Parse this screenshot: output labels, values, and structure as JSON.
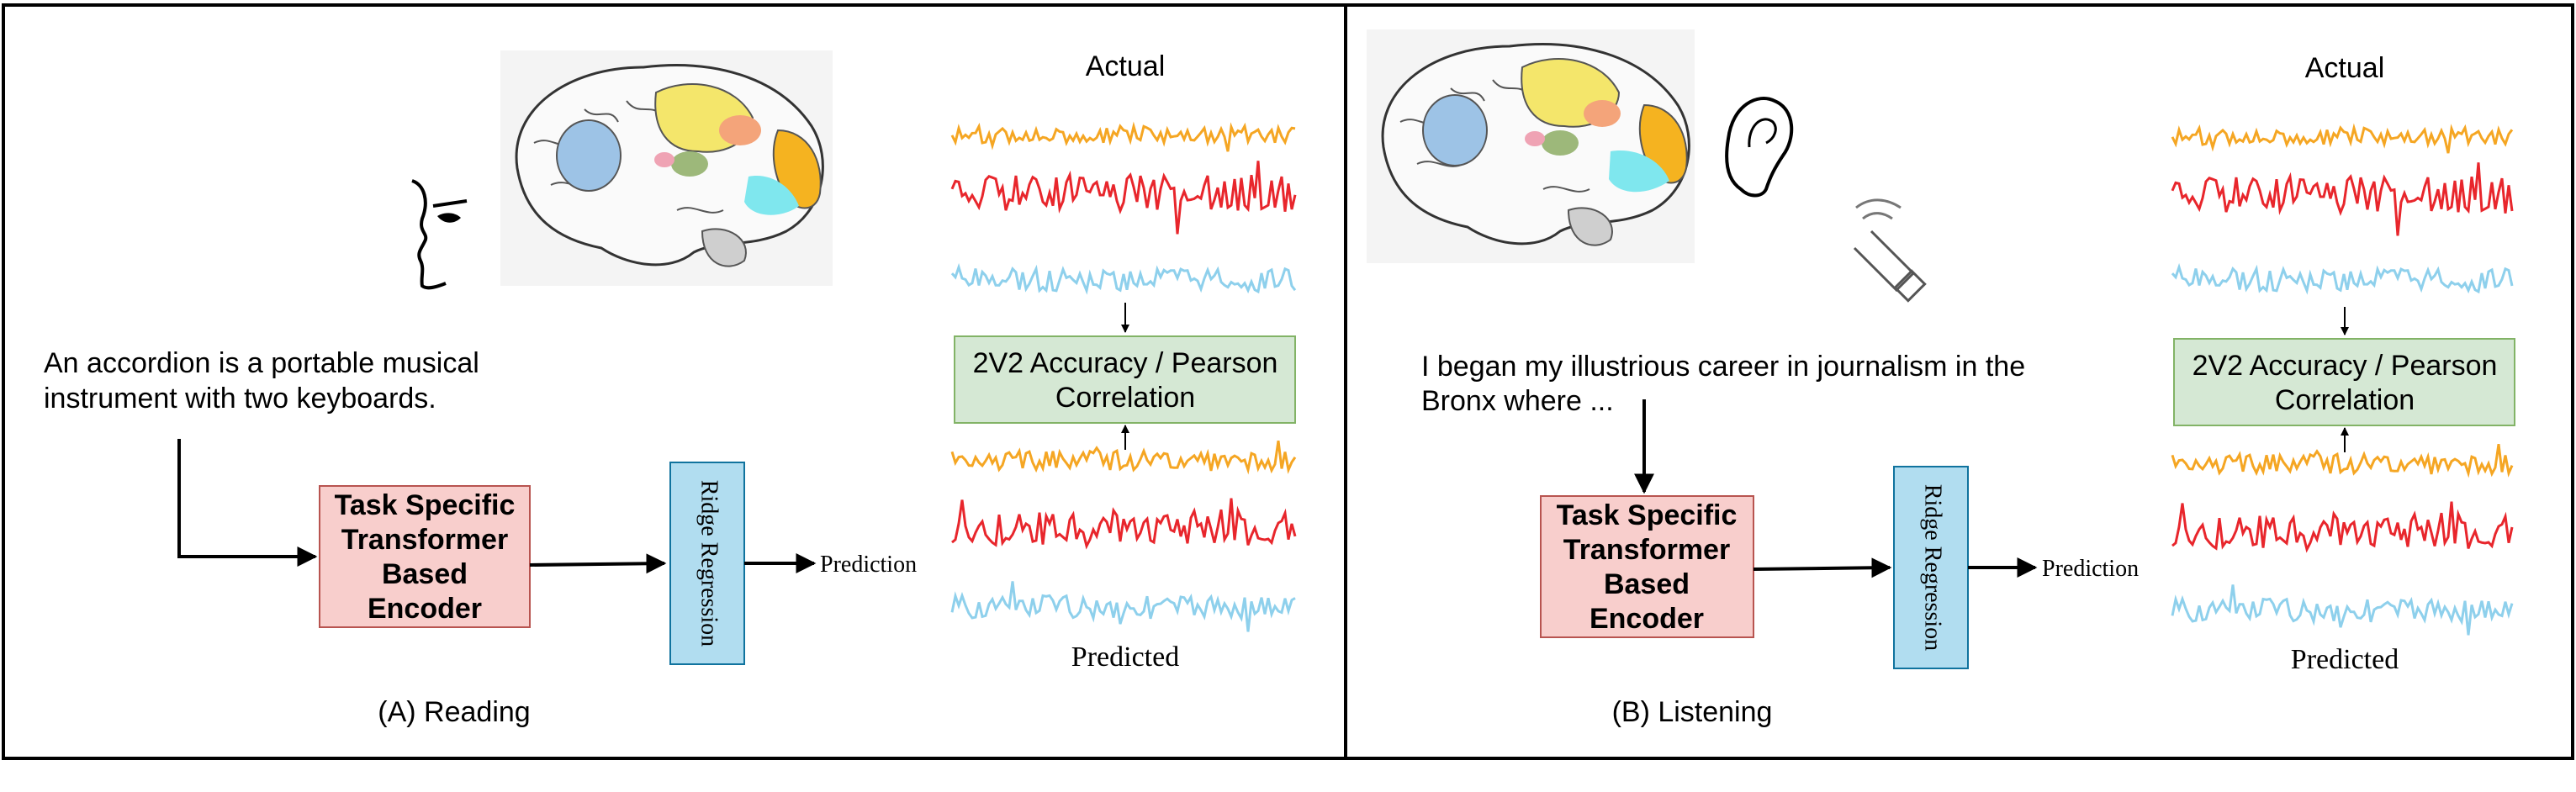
{
  "panels": [
    {
      "caption": "(A) Reading",
      "stimulus_line1": "An accordion is a portable musical",
      "stimulus_line2": "instrument with two keyboards.",
      "encoder_lines": [
        "Task Specific",
        "Transformer",
        "Based",
        "Encoder"
      ],
      "regression_label": "Ridge Regression",
      "prediction_label": "Prediction",
      "actual_label": "Actual",
      "predicted_label": "Predicted",
      "metric_line1": "2V2 Accuracy / Pearson",
      "metric_line2": "Correlation",
      "sensory_icon": "eye-face-icon"
    },
    {
      "caption": "(B) Listening",
      "stimulus_line1": "I began my illustrious career in journalism in the",
      "stimulus_line2": "Bronx where ...",
      "encoder_lines": [
        "Task Specific",
        "Transformer",
        "Based",
        "Encoder"
      ],
      "regression_label": "Ridge Regression",
      "prediction_label": "Prediction",
      "actual_label": "Actual",
      "predicted_label": "Predicted",
      "metric_line1": "2V2 Accuracy / Pearson",
      "metric_line2": "Correlation",
      "sensory_icon": "ear-icon"
    }
  ],
  "colors": {
    "signal_orange": "#F5A623",
    "signal_red": "#E8262C",
    "signal_blue": "#8ED0EC",
    "encoder_fill": "#F8CECC",
    "encoder_stroke": "#B85450",
    "regression_fill": "#B1DDF0",
    "regression_stroke": "#10739E",
    "metric_fill": "#D5E8D4",
    "metric_stroke": "#82B366"
  }
}
